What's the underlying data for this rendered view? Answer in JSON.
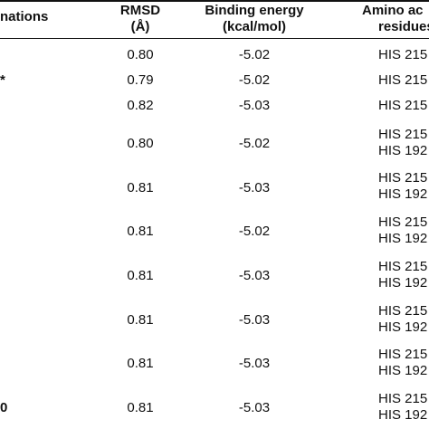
{
  "table": {
    "headers": {
      "conformations": "nations",
      "rmsd_line1": "RMSD",
      "rmsd_line2": "(Å)",
      "energy_line1": "Binding energy",
      "energy_line2": "(kcal/mol)",
      "residues_line1": "Amino ac",
      "residues_line2": "residues"
    },
    "rows": [
      {
        "mark": "",
        "rmsd": "0.80",
        "energy": "-5.02",
        "residues": [
          "HIS 215"
        ]
      },
      {
        "mark": "*",
        "rmsd": "0.79",
        "energy": "-5.02",
        "residues": [
          "HIS 215"
        ]
      },
      {
        "mark": "",
        "rmsd": "0.82",
        "energy": "-5.03",
        "residues": [
          "HIS 215"
        ]
      },
      {
        "mark": "",
        "rmsd": "0.80",
        "energy": "-5.02",
        "residues": [
          "HIS 215",
          "HIS 192"
        ]
      },
      {
        "mark": "",
        "rmsd": "0.81",
        "energy": "-5.03",
        "residues": [
          "HIS 215",
          "HIS 192"
        ]
      },
      {
        "mark": "",
        "rmsd": "0.81",
        "energy": "-5.02",
        "residues": [
          "HIS 215",
          "HIS 192"
        ]
      },
      {
        "mark": "",
        "rmsd": "0.81",
        "energy": "-5.03",
        "residues": [
          "HIS 215",
          "HIS 192"
        ]
      },
      {
        "mark": "",
        "rmsd": "0.81",
        "energy": "-5.03",
        "residues": [
          "HIS 215",
          "HIS 192"
        ]
      },
      {
        "mark": "",
        "rmsd": "0.81",
        "energy": "-5.03",
        "residues": [
          "HIS 215",
          "HIS 192"
        ]
      },
      {
        "mark": "0",
        "rmsd": "0.81",
        "energy": "-5.03",
        "residues": [
          "HIS 215",
          "HIS 192"
        ]
      }
    ]
  }
}
